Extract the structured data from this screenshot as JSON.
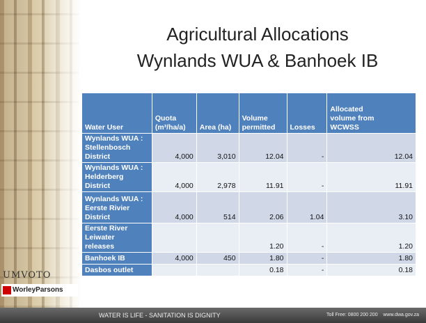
{
  "slide": {
    "title": [
      "Agricultural Allocations",
      "Wynlands WUA & Banhoek IB"
    ],
    "table": {
      "header": [
        [
          "Water User"
        ],
        [
          "Quota",
          "(m³/ha/a)"
        ],
        [
          "Area (ha)"
        ],
        [
          "Volume",
          "permitted"
        ],
        [
          "Losses"
        ],
        [
          "Allocated",
          "volume from",
          "WCWSS"
        ]
      ],
      "rows": [
        [
          [
            "Wynlands WUA :",
            "Stellenbosch District"
          ],
          "4,000",
          "3,010",
          "12.04",
          "-",
          "12.04"
        ],
        [
          [
            "Wynlands WUA :",
            "Helderberg District"
          ],
          "4,000",
          "2,978",
          "11.91",
          "-",
          "11.91"
        ],
        [
          [
            "Wynlands WUA :",
            "Eerste Rivier District"
          ],
          "4,000",
          "514",
          "2.06",
          "1.04",
          "3.10"
        ],
        [
          [
            "Eerste River Leiwater",
            "releases"
          ],
          null,
          null,
          "1.20",
          "-",
          "1.20"
        ],
        [
          [
            "Banhoek IB"
          ],
          "4,000",
          "450",
          "1.80",
          "-",
          "1.80"
        ],
        [
          [
            "Dasbos outlet"
          ],
          null,
          null,
          "0.18",
          "-",
          "0.18"
        ]
      ]
    },
    "logos": [
      "UMVOTO",
      "WorleyParsons"
    ],
    "footer": {
      "left": "WATER IS LIFE - SANITATION IS DIGNITY",
      "right": "Toll Free: 0800 200 200    www.dwa.gov.za"
    }
  }
}
